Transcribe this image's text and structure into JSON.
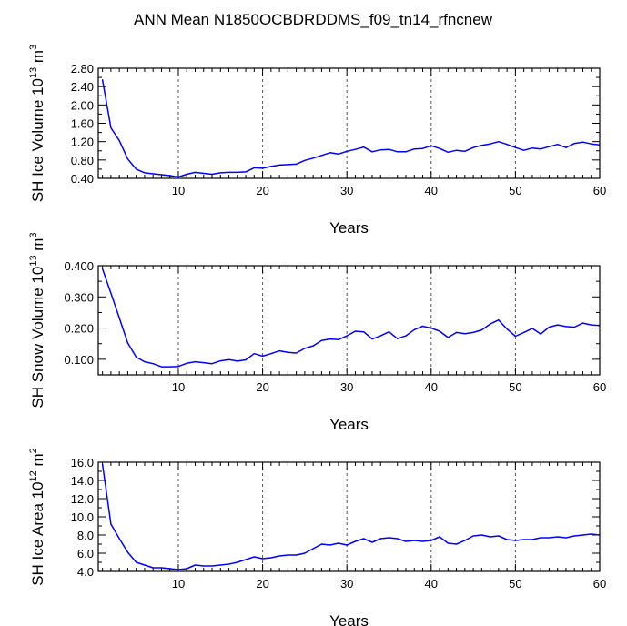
{
  "figure": {
    "title": "ANN Mean N1850OCBDRDDMS_f09_tn14_rfncnew"
  },
  "chart_data": [
    {
      "type": "line",
      "ylabel": "SH Ice Volume",
      "ylabel_exp": "13",
      "ylabel_unit": "m",
      "ylabel_unit_exp": "3",
      "xlabel": "Years",
      "xlim": [
        0.5,
        60
      ],
      "ylim": [
        0.4,
        2.8
      ],
      "xticks": [
        "10",
        "20",
        "30",
        "40",
        "50",
        "60"
      ],
      "yticks": [
        "0.40",
        "0.80",
        "1.20",
        "1.60",
        "2.00",
        "2.40",
        "2.80"
      ],
      "vertical_gridlines": "dashed at 10, 20, 30, 40, 50",
      "series_color": "#0000ff",
      "x": [
        1,
        2,
        3,
        4,
        5,
        6,
        7,
        8,
        9,
        10,
        11,
        12,
        13,
        14,
        15,
        16,
        17,
        18,
        19,
        20,
        21,
        22,
        23,
        24,
        25,
        26,
        27,
        28,
        29,
        30,
        31,
        32,
        33,
        34,
        35,
        36,
        37,
        38,
        39,
        40,
        41,
        42,
        43,
        44,
        45,
        46,
        47,
        48,
        49,
        50,
        51,
        52,
        53,
        54,
        55,
        56,
        57,
        58,
        59,
        60
      ],
      "values": [
        2.55,
        1.5,
        1.22,
        0.82,
        0.6,
        0.52,
        0.5,
        0.48,
        0.46,
        0.43,
        0.49,
        0.53,
        0.51,
        0.49,
        0.52,
        0.53,
        0.53,
        0.54,
        0.63,
        0.62,
        0.66,
        0.69,
        0.7,
        0.71,
        0.79,
        0.84,
        0.9,
        0.96,
        0.93,
        0.99,
        1.03,
        1.08,
        0.98,
        1.02,
        1.03,
        0.98,
        0.98,
        1.04,
        1.05,
        1.11,
        1.05,
        0.97,
        1.01,
        0.99,
        1.07,
        1.12,
        1.15,
        1.2,
        1.14,
        1.07,
        1.01,
        1.06,
        1.04,
        1.09,
        1.14,
        1.07,
        1.16,
        1.19,
        1.15,
        1.13
      ]
    },
    {
      "type": "line",
      "ylabel": "SH Snow Volume",
      "ylabel_exp": "13",
      "ylabel_unit": "m",
      "ylabel_unit_exp": "3",
      "xlabel": "Years",
      "xlim": [
        0.5,
        60
      ],
      "ylim": [
        0.05,
        0.4
      ],
      "xticks": [
        "10",
        "20",
        "30",
        "40",
        "50",
        "60"
      ],
      "yticks": [
        "0.100",
        "0.200",
        "0.300",
        "0.400"
      ],
      "vertical_gridlines": "dashed at 10, 20, 30, 40, 50",
      "series_color": "#0000ff",
      "x": [
        1,
        2,
        3,
        4,
        5,
        6,
        7,
        8,
        9,
        10,
        11,
        12,
        13,
        14,
        15,
        16,
        17,
        18,
        19,
        20,
        21,
        22,
        23,
        24,
        25,
        26,
        27,
        28,
        29,
        30,
        31,
        32,
        33,
        34,
        35,
        36,
        37,
        38,
        39,
        40,
        41,
        42,
        43,
        44,
        45,
        46,
        47,
        48,
        49,
        50,
        51,
        52,
        53,
        54,
        55,
        56,
        57,
        58,
        59,
        60
      ],
      "values": [
        0.39,
        0.312,
        0.232,
        0.152,
        0.107,
        0.092,
        0.086,
        0.076,
        0.076,
        0.077,
        0.087,
        0.092,
        0.089,
        0.086,
        0.095,
        0.099,
        0.094,
        0.098,
        0.118,
        0.11,
        0.118,
        0.127,
        0.122,
        0.12,
        0.135,
        0.143,
        0.16,
        0.165,
        0.163,
        0.175,
        0.19,
        0.188,
        0.165,
        0.175,
        0.188,
        0.166,
        0.175,
        0.195,
        0.206,
        0.2,
        0.19,
        0.17,
        0.186,
        0.182,
        0.186,
        0.194,
        0.213,
        0.226,
        0.197,
        0.174,
        0.186,
        0.199,
        0.181,
        0.203,
        0.21,
        0.205,
        0.203,
        0.216,
        0.21,
        0.208
      ]
    },
    {
      "type": "line",
      "ylabel": "SH Ice Area",
      "ylabel_exp": "12",
      "ylabel_unit": "m",
      "ylabel_unit_exp": "2",
      "xlabel": "Years",
      "xlim": [
        0.5,
        60
      ],
      "ylim": [
        4.0,
        16.0
      ],
      "xticks": [
        "10",
        "20",
        "30",
        "40",
        "50",
        "60"
      ],
      "yticks": [
        "4.0",
        "6.0",
        "8.0",
        "10.0",
        "12.0",
        "14.0",
        "16.0"
      ],
      "vertical_gridlines": "dashed at 10, 20, 30, 40, 50",
      "series_color": "#0000ff",
      "x": [
        1,
        2,
        3,
        4,
        5,
        6,
        7,
        8,
        9,
        10,
        11,
        12,
        13,
        14,
        15,
        16,
        17,
        18,
        19,
        20,
        21,
        22,
        23,
        24,
        25,
        26,
        27,
        28,
        29,
        30,
        31,
        32,
        33,
        34,
        35,
        36,
        37,
        38,
        39,
        40,
        41,
        42,
        43,
        44,
        45,
        46,
        47,
        48,
        49,
        50,
        51,
        52,
        53,
        54,
        55,
        56,
        57,
        58,
        59,
        60
      ],
      "values": [
        15.8,
        9.2,
        7.6,
        6.1,
        5.0,
        4.7,
        4.4,
        4.4,
        4.3,
        4.2,
        4.3,
        4.7,
        4.6,
        4.6,
        4.7,
        4.8,
        5.0,
        5.3,
        5.6,
        5.4,
        5.5,
        5.7,
        5.8,
        5.8,
        6.0,
        6.5,
        7.0,
        6.9,
        7.1,
        6.9,
        7.3,
        7.6,
        7.2,
        7.6,
        7.7,
        7.6,
        7.3,
        7.4,
        7.3,
        7.4,
        7.8,
        7.1,
        7.0,
        7.4,
        7.9,
        8.0,
        7.8,
        7.9,
        7.5,
        7.4,
        7.5,
        7.5,
        7.7,
        7.7,
        7.8,
        7.7,
        7.9,
        8.0,
        8.1,
        8.0
      ]
    }
  ]
}
